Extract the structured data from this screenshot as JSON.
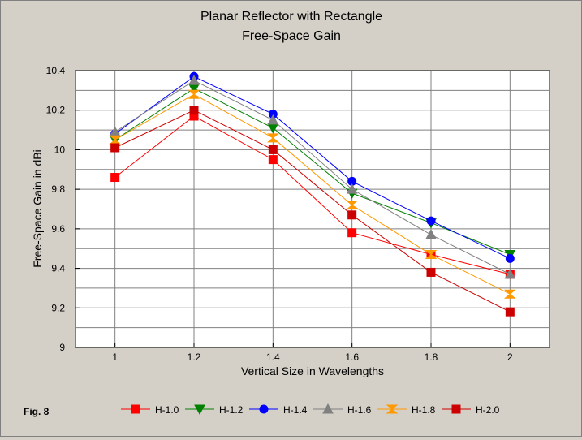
{
  "chart_data": {
    "type": "line",
    "title": "Planar Reflector with Rectangle",
    "subtitle": "Free-Space Gain",
    "xlabel": "Vertical Size in Wavelengths",
    "ylabel": "Free-Space Gain in dBi",
    "x": [
      1,
      1.2,
      1.4,
      1.6,
      1.8,
      2
    ],
    "xticks": [
      "1",
      "1.2",
      "1.4",
      "1.6",
      "1.8",
      "2"
    ],
    "xlim": [
      0.9,
      2.1
    ],
    "ylim": [
      9,
      10.4
    ],
    "yticks": [
      "9",
      "9.2",
      "9.4",
      "9.6",
      "9.8",
      "10",
      "10.2",
      "10.4"
    ],
    "yticks_values": [
      9,
      9.2,
      9.4,
      9.6,
      9.8,
      10,
      10.2,
      10.4
    ],
    "grid": true,
    "legend_position": "bottom",
    "series": [
      {
        "name": "H-1.0",
        "color": "#ff0000",
        "marker": "square",
        "values": [
          9.86,
          10.17,
          9.95,
          9.58,
          9.47,
          9.37
        ]
      },
      {
        "name": "H-1.2",
        "color": "#008000",
        "marker": "triangle-down",
        "values": [
          10.05,
          10.31,
          10.11,
          9.78,
          9.63,
          9.47
        ]
      },
      {
        "name": "H-1.4",
        "color": "#0000ff",
        "marker": "circle",
        "values": [
          10.08,
          10.37,
          10.18,
          9.84,
          9.64,
          9.45
        ]
      },
      {
        "name": "H-1.6",
        "color": "#808080",
        "marker": "triangle-up",
        "values": [
          10.09,
          10.35,
          10.15,
          9.8,
          9.57,
          9.37
        ]
      },
      {
        "name": "H-1.8",
        "color": "#ff9900",
        "marker": "hourglass",
        "values": [
          10.05,
          10.28,
          10.06,
          9.72,
          9.47,
          9.27
        ]
      },
      {
        "name": "H-2.0",
        "color": "#cc0000",
        "marker": "square",
        "values": [
          10.01,
          10.2,
          10.0,
          9.67,
          9.38,
          9.18
        ]
      }
    ],
    "annotation": "Fig. 8"
  }
}
